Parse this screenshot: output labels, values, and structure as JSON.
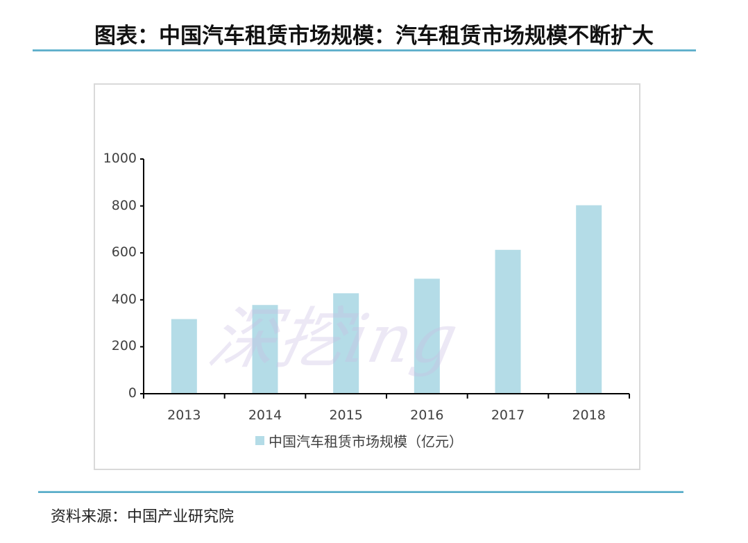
{
  "title": "图表：中国汽车租赁市场规模：汽车租赁市场规模不断扩大",
  "source": "资料来源：中国产业研究院",
  "watermark": "深挖ing",
  "colors": {
    "bar": "#b4dce7",
    "axis": "#000000",
    "rule": "#4aa3c2",
    "border": "#d9d9d9"
  },
  "legend": {
    "label": "中国汽车租赁市场规模（亿元）"
  },
  "chart_data": {
    "type": "bar",
    "title": "中国汽车租赁市场规模：汽车租赁市场规模不断扩大",
    "categories": [
      "2013",
      "2014",
      "2015",
      "2016",
      "2017",
      "2018"
    ],
    "series": [
      {
        "name": "中国汽车租赁市场规模（亿元）",
        "values": [
          318,
          378,
          428,
          490,
          613,
          803
        ]
      }
    ],
    "xlabel": "",
    "ylabel": "",
    "ylim": [
      0,
      1000
    ],
    "yticks": [
      "0",
      "200",
      "400",
      "600",
      "800",
      "1000"
    ],
    "grid": false,
    "legend_position": "bottom"
  }
}
